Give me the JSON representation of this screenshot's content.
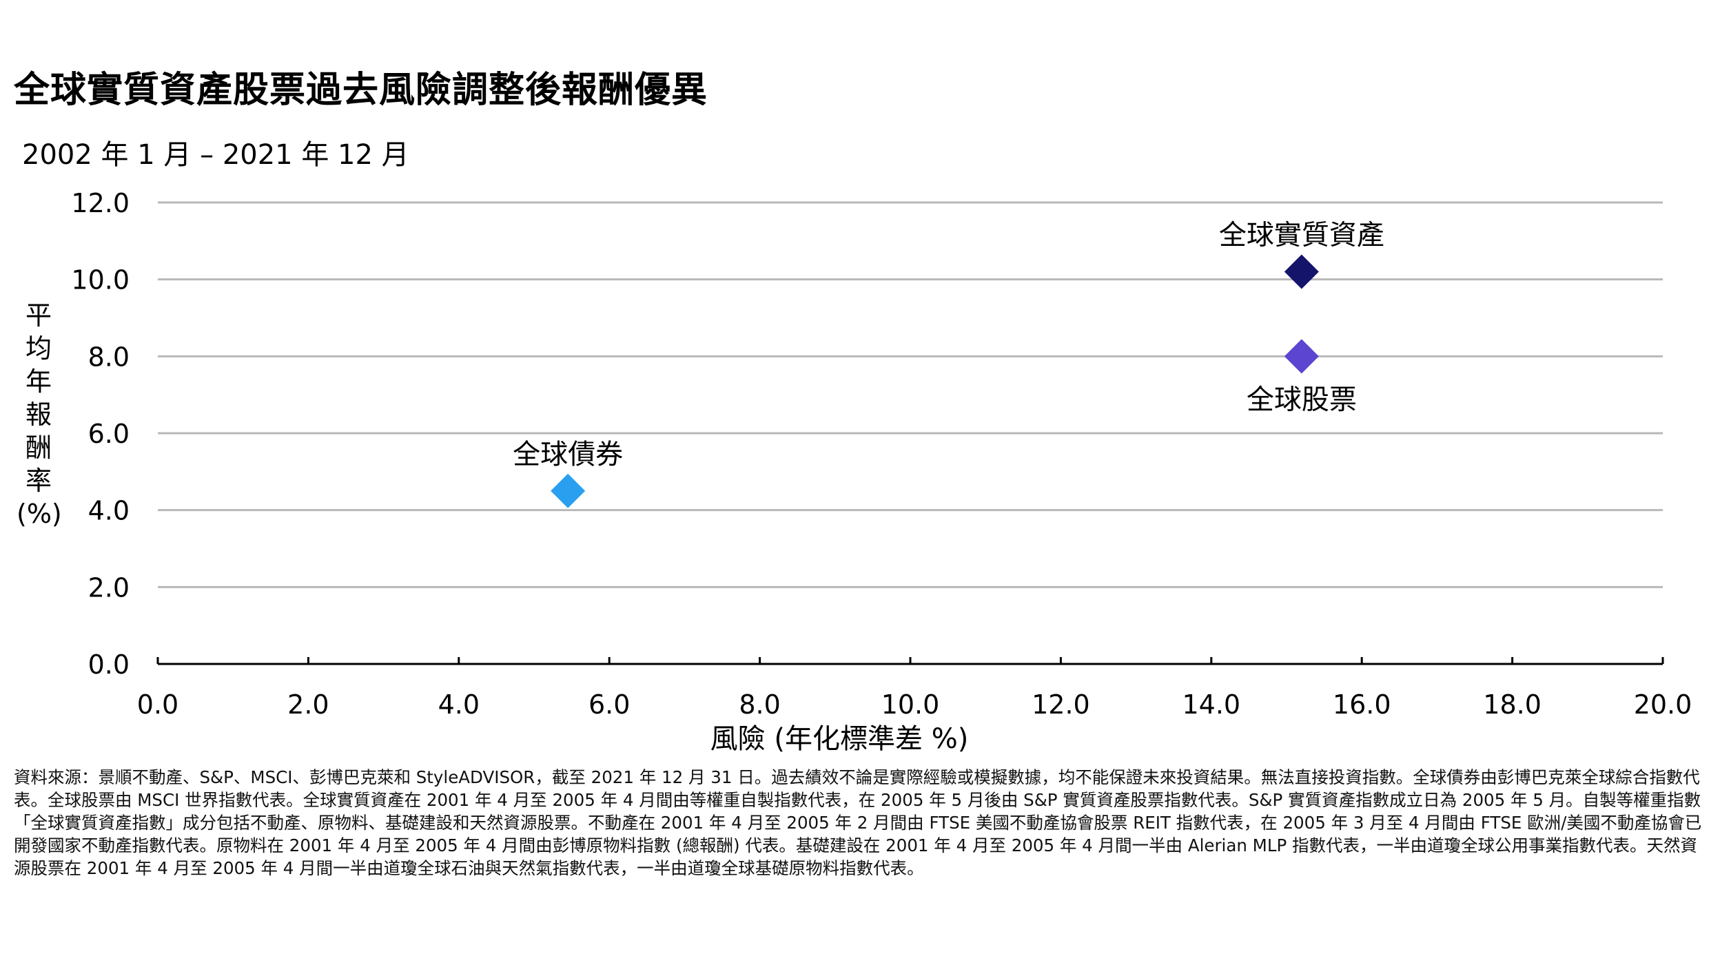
{
  "chart_data": {
    "type": "scatter",
    "title": "全球實質資產股票過去風險調整後報酬優異",
    "subtitle": "2002 年 1 月 – 2021 年 12 月",
    "xlabel": "風險 (年化標準差 %)",
    "ylabel": [
      "平",
      "均",
      "年",
      "報",
      "酬",
      "率",
      "(%)"
    ],
    "xlim": [
      0,
      20
    ],
    "ylim": [
      0,
      12
    ],
    "xticks": [
      "0.0",
      "2.0",
      "4.0",
      "6.0",
      "8.0",
      "10.0",
      "12.0",
      "14.0",
      "16.0",
      "18.0",
      "20.0"
    ],
    "yticks": [
      "0.0",
      "2.0",
      "4.0",
      "6.0",
      "8.0",
      "10.0",
      "12.0"
    ],
    "grid": "horizontal",
    "points": [
      {
        "label": "全球實質資產",
        "x": 15.2,
        "y": 10.2,
        "color": "#14146b",
        "label_position": "above"
      },
      {
        "label": "全球股票",
        "x": 15.2,
        "y": 8.0,
        "color": "#5b45d1",
        "label_position": "below"
      },
      {
        "label": "全球債券",
        "x": 5.45,
        "y": 4.5,
        "color": "#2a9ff0",
        "label_position": "above"
      }
    ]
  },
  "source_note": "資料來源：景順不動產、S&P、MSCI、彭博巴克萊和 StyleADVISOR，截至 2021 年 12 月 31 日。過去績效不論是實際經驗或模擬數據，均不能保證未來投資結果。無法直接投資指數。全球債券由彭博巴克萊全球綜合指數代表。全球股票由 MSCI 世界指數代表。全球實質資產在 2001 年 4 月至 2005 年 4 月間由等權重自製指數代表，在 2005 年 5 月後由 S&P 實質資產股票指數代表。S&P 實質資產指數成立日為 2005 年 5 月。自製等權重指數「全球實質資產指數」成分包括不動產、原物料、基礎建設和天然資源股票。不動產在 2001 年 4 月至 2005 年 2 月間由 FTSE 美國不動產協會股票 REIT 指數代表，在 2005 年 3 月至 4 月間由 FTSE 歐洲/美國不動產協會已開發國家不動產指數代表。原物料在 2001 年 4 月至 2005 年 4 月間由彭博原物料指數 (總報酬) 代表。基礎建設在 2001 年 4 月至 2005 年 4 月間一半由 Alerian MLP 指數代表，一半由道瓊全球公用事業指數代表。天然資源股票在 2001 年 4 月至 2005 年 4 月間一半由道瓊全球石油與天然氣指數代表，一半由道瓊全球基礎原物料指數代表。"
}
